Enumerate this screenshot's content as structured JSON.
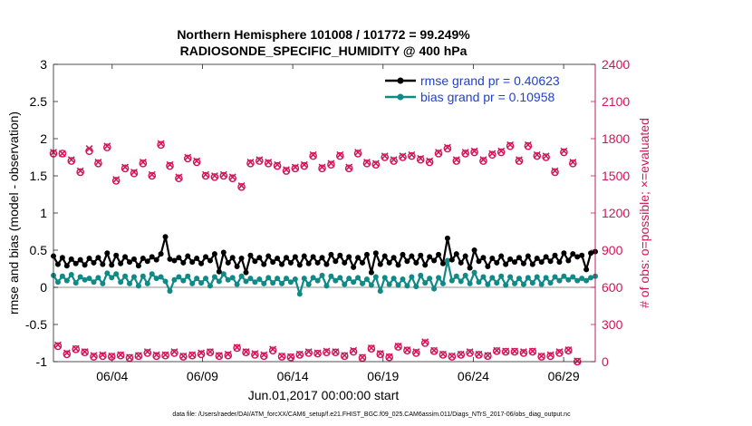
{
  "colors": {
    "rmse": "#000000",
    "bias": "#108a86",
    "obs": "#d11557",
    "legend_text": "#1f3fd6",
    "zero_line": "#a6a6a6",
    "axis": "#262626"
  },
  "chart_data": {
    "type": "line",
    "title": "Northern Hemisphere 101008 / 101772 = 99.249%",
    "subtitle": "RADIOSONDE_SPECIFIC_HUMIDITY @ 400 hPa",
    "xlabel": "Jun.01,2017 00:00:00 start",
    "ylabel_left": "rmse and bias (model - observation)",
    "ylabel_right": "# of obs: o=possible; ×=evaluated",
    "ylim_left": [
      -1,
      3
    ],
    "ylim_right": [
      0,
      2400
    ],
    "xlim": [
      0,
      120
    ],
    "left_ticks": [
      "-1",
      "-0.5",
      "0",
      "0.5",
      "1",
      "1.5",
      "2",
      "2.5",
      "3"
    ],
    "right_ticks": [
      "0",
      "300",
      "600",
      "900",
      "1200",
      "1500",
      "1800",
      "2100",
      "2400"
    ],
    "x_ticks": [
      {
        "x": 13,
        "label": "06/04"
      },
      {
        "x": 33,
        "label": "06/09"
      },
      {
        "x": 53,
        "label": "06/14"
      },
      {
        "x": 73,
        "label": "06/19"
      },
      {
        "x": 93,
        "label": "06/24"
      },
      {
        "x": 113,
        "label": "06/29"
      }
    ],
    "legend": {
      "position": "top-right",
      "rmse_label": "rmse grand pr = 0.40623",
      "bias_label": "bias grand pr = 0.10958"
    },
    "series": [
      {
        "name": "rmse",
        "axis": "left",
        "values": [
          0.42,
          0.31,
          0.4,
          0.29,
          0.38,
          0.32,
          0.37,
          0.3,
          0.39,
          0.33,
          0.4,
          0.31,
          0.46,
          0.3,
          0.43,
          0.32,
          0.41,
          0.34,
          0.38,
          0.29,
          0.39,
          0.35,
          0.41,
          0.37,
          0.45,
          0.68,
          0.38,
          0.36,
          0.4,
          0.33,
          0.42,
          0.34,
          0.39,
          0.32,
          0.41,
          0.36,
          0.45,
          0.21,
          0.47,
          0.33,
          0.4,
          0.28,
          0.39,
          0.2,
          0.43,
          0.35,
          0.4,
          0.31,
          0.42,
          0.34,
          0.39,
          0.31,
          0.4,
          0.33,
          0.41,
          0.3,
          0.42,
          0.32,
          0.41,
          0.33,
          0.4,
          0.31,
          0.44,
          0.35,
          0.43,
          0.33,
          0.41,
          0.27,
          0.4,
          0.33,
          0.44,
          0.2,
          0.46,
          0.31,
          0.42,
          0.33,
          0.4,
          0.3,
          0.44,
          0.35,
          0.42,
          0.33,
          0.43,
          0.3,
          0.41,
          0.36,
          0.44,
          0.32,
          0.66,
          0.37,
          0.45,
          0.33,
          0.42,
          0.26,
          0.5,
          0.35,
          0.4,
          0.28,
          0.39,
          0.33,
          0.42,
          0.31,
          0.38,
          0.34,
          0.4,
          0.32,
          0.42,
          0.31,
          0.39,
          0.34,
          0.41,
          0.35,
          0.43,
          0.34,
          0.46,
          0.36,
          0.45,
          0.41,
          0.43,
          0.24,
          0.46,
          0.48
        ]
      },
      {
        "name": "bias",
        "axis": "left",
        "values": [
          0.16,
          0.07,
          0.15,
          0.09,
          0.17,
          0.06,
          0.14,
          0.1,
          0.12,
          0.07,
          0.13,
          0.05,
          0.19,
          0.13,
          0.18,
          0.07,
          0.15,
          0.05,
          0.14,
          0.02,
          0.15,
          0.05,
          0.18,
          0.12,
          0.14,
          0.08,
          -0.05,
          0.1,
          0.14,
          0.09,
          0.15,
          0.05,
          0.12,
          0.06,
          0.12,
          0.02,
          0.14,
          0.08,
          0.18,
          0.1,
          0.13,
          0.04,
          0.15,
          0.08,
          0.12,
          0.07,
          0.11,
          0.05,
          0.13,
          0.06,
          0.12,
          0.05,
          0.12,
          0.07,
          0.11,
          -0.09,
          0.12,
          0.04,
          0.13,
          0.09,
          0.16,
          0.02,
          0.15,
          0.09,
          0.13,
          0.04,
          0.12,
          0.07,
          0.13,
          0.05,
          0.11,
          0.03,
          0.14,
          -0.05,
          0.13,
          0.04,
          0.12,
          0.03,
          0.11,
          0.02,
          0.14,
          0.01,
          0.16,
          0.06,
          0.12,
          -0.02,
          0.13,
          0.05,
          0.36,
          0.09,
          0.15,
          0.08,
          0.16,
          0.05,
          0.2,
          0.07,
          0.14,
          0.04,
          0.13,
          0.06,
          0.15,
          0.03,
          0.14,
          0.05,
          0.12,
          0.04,
          0.13,
          0.06,
          0.14,
          0.04,
          0.13,
          0.06,
          0.14,
          0.09,
          0.15,
          0.1,
          0.14,
          0.09,
          0.12,
          0.09,
          0.13,
          0.15
        ]
      },
      {
        "name": "obs possible",
        "axis": "right",
        "values": [
          1680,
          125,
          1680,
          60,
          1620,
          100,
          1530,
          75,
          1700,
          40,
          1600,
          45,
          1730,
          40,
          1460,
          50,
          1560,
          30,
          1520,
          45,
          1600,
          70,
          1500,
          45,
          1750,
          50,
          1580,
          70,
          1480,
          40,
          1640,
          50,
          1610,
          60,
          1500,
          75,
          1490,
          45,
          1500,
          50,
          1480,
          110,
          1410,
          75,
          1600,
          55,
          1620,
          45,
          1600,
          90,
          1580,
          40,
          1540,
          35,
          1560,
          55,
          1580,
          70,
          1660,
          65,
          1560,
          75,
          1590,
          75,
          1660,
          45,
          1560,
          80,
          1680,
          30,
          1600,
          105,
          1590,
          60,
          1650,
          35,
          1620,
          120,
          1650,
          90,
          1660,
          70,
          1630,
          150,
          1610,
          85,
          1680,
          55,
          1720,
          40,
          1620,
          55,
          1680,
          70,
          1690,
          55,
          1620,
          45,
          1670,
          85,
          1690,
          80,
          1740,
          80,
          1620,
          70,
          1740,
          80,
          1660,
          40,
          1650,
          45,
          1530,
          70,
          1690,
          90,
          1600,
          0
        ]
      },
      {
        "name": "obs evaluated",
        "axis": "right",
        "values": [
          1690,
          135,
          1680,
          70,
          1630,
          105,
          1540,
          80,
          1720,
          50,
          1610,
          55,
          1740,
          45,
          1470,
          55,
          1570,
          35,
          1530,
          50,
          1610,
          80,
          1510,
          55,
          1760,
          55,
          1590,
          80,
          1490,
          45,
          1650,
          55,
          1620,
          70,
          1510,
          80,
          1500,
          50,
          1510,
          60,
          1490,
          115,
          1420,
          80,
          1610,
          65,
          1630,
          55,
          1610,
          100,
          1590,
          45,
          1550,
          40,
          1570,
          60,
          1590,
          80,
          1670,
          70,
          1570,
          85,
          1600,
          80,
          1670,
          50,
          1570,
          90,
          1690,
          35,
          1610,
          110,
          1600,
          65,
          1660,
          40,
          1630,
          125,
          1660,
          95,
          1670,
          80,
          1640,
          160,
          1620,
          90,
          1690,
          60,
          1730,
          45,
          1630,
          60,
          1690,
          80,
          1700,
          60,
          1630,
          50,
          1680,
          90,
          1700,
          85,
          1750,
          85,
          1630,
          80,
          1750,
          85,
          1670,
          45,
          1660,
          55,
          1540,
          80,
          1700,
          95,
          1610,
          5
        ]
      }
    ]
  },
  "footer": {
    "data_file": "data file: /Users/raeder/DAI/ATM_forcXX/CAM6_setup/f.e21.FHIST_BGC.f09_025.CAM6assim.011/Diags_NTrS_2017-06/obs_diag_output.nc"
  }
}
